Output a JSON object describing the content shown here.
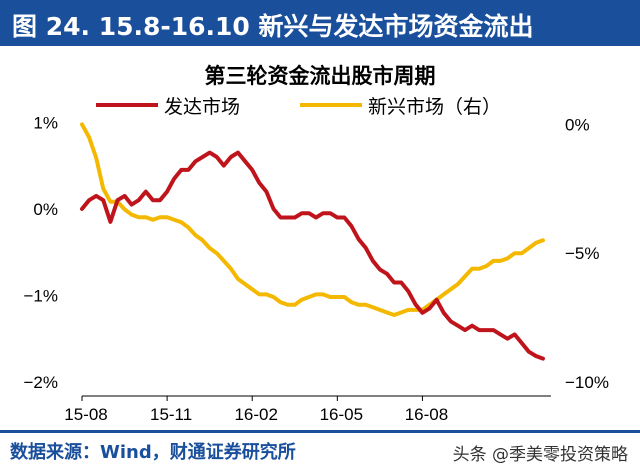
{
  "header": {
    "title": "图 24. 15.8-16.10 新兴与发达市场资金流出"
  },
  "footer": {
    "source": "数据来源：Wind，财通证券研究所",
    "watermark": "头条 @季美零投资策略"
  },
  "colors": {
    "developed": "#c0141c",
    "emerging": "#f5b800",
    "header": "#1a4f9c"
  },
  "chart_data": {
    "type": "line",
    "title": "第三轮资金流出股市周期",
    "x_ticks": [
      "15-08",
      "15-11",
      "16-02",
      "16-05",
      "16-08"
    ],
    "x_tick_index": [
      0,
      12,
      24,
      36,
      48
    ],
    "left_axis": {
      "ticks": [
        "1%",
        "0%",
        "−1%",
        "−2%"
      ],
      "values": [
        1,
        0,
        -1,
        -2
      ],
      "ylim": [
        -2,
        1.05
      ]
    },
    "right_axis": {
      "ticks": [
        "0%",
        "−5%",
        "−10%"
      ],
      "values": [
        0,
        -5,
        -10
      ],
      "ylim": [
        -10,
        0.25
      ]
    },
    "series": [
      {
        "name": "发达市场",
        "axis": "left",
        "color": "#c0141c",
        "values": [
          0.0,
          0.1,
          0.15,
          0.1,
          -0.15,
          0.1,
          0.15,
          0.05,
          0.1,
          0.2,
          0.1,
          0.1,
          0.2,
          0.35,
          0.45,
          0.45,
          0.55,
          0.6,
          0.65,
          0.6,
          0.5,
          0.6,
          0.65,
          0.55,
          0.45,
          0.3,
          0.2,
          0.0,
          -0.1,
          -0.1,
          -0.1,
          -0.05,
          -0.05,
          -0.1,
          -0.05,
          -0.05,
          -0.1,
          -0.1,
          -0.2,
          -0.35,
          -0.45,
          -0.6,
          -0.7,
          -0.75,
          -0.85,
          -0.85,
          -0.95,
          -1.1,
          -1.2,
          -1.15,
          -1.05,
          -1.2,
          -1.3,
          -1.35,
          -1.4,
          -1.35,
          -1.4,
          -1.4,
          -1.4,
          -1.45,
          -1.5,
          -1.45,
          -1.55,
          -1.65,
          -1.7,
          -1.73
        ]
      },
      {
        "name": "新兴市场（右）",
        "axis": "right",
        "color": "#f5b800",
        "values": [
          0.0,
          -0.5,
          -1.3,
          -2.5,
          -3.0,
          -3.0,
          -3.3,
          -3.5,
          -3.6,
          -3.6,
          -3.7,
          -3.6,
          -3.6,
          -3.7,
          -3.8,
          -4.0,
          -4.3,
          -4.5,
          -4.8,
          -5.0,
          -5.3,
          -5.6,
          -6.0,
          -6.2,
          -6.4,
          -6.6,
          -6.6,
          -6.7,
          -6.9,
          -7.0,
          -7.0,
          -6.8,
          -6.7,
          -6.6,
          -6.6,
          -6.7,
          -6.7,
          -6.7,
          -6.9,
          -7.0,
          -7.0,
          -7.1,
          -7.2,
          -7.3,
          -7.4,
          -7.3,
          -7.2,
          -7.2,
          -7.2,
          -7.0,
          -6.8,
          -6.6,
          -6.4,
          -6.2,
          -5.9,
          -5.6,
          -5.6,
          -5.5,
          -5.3,
          -5.3,
          -5.2,
          -5.0,
          -5.0,
          -4.8,
          -4.6,
          -4.5
        ]
      }
    ]
  }
}
